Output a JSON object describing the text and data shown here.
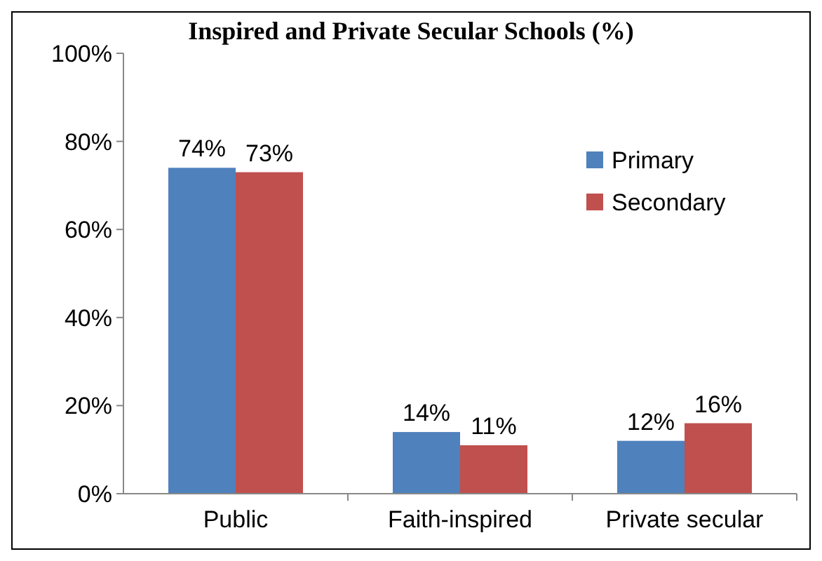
{
  "chart_data": {
    "type": "bar",
    "title": "Inspired and Private Secular Schools (%)",
    "categories": [
      "Public",
      "Faith-inspired",
      "Private secular"
    ],
    "series": [
      {
        "name": "Primary",
        "color": "#4f81bd",
        "values": [
          74,
          14,
          12
        ]
      },
      {
        "name": "Secondary",
        "color": "#c0504d",
        "values": [
          73,
          11,
          16
        ]
      }
    ],
    "ylim": [
      0,
      100
    ],
    "yticks": [
      {
        "value": 0,
        "label": "0%"
      },
      {
        "value": 20,
        "label": "20%"
      },
      {
        "value": 40,
        "label": "40%"
      },
      {
        "value": 60,
        "label": "60%"
      },
      {
        "value": 80,
        "label": "80%"
      },
      {
        "value": 100,
        "label": "100%"
      }
    ],
    "value_labels": [
      [
        "74%",
        "14%",
        "12%"
      ],
      [
        "73%",
        "11%",
        "16%"
      ]
    ],
    "legend": "right",
    "grid": false
  }
}
